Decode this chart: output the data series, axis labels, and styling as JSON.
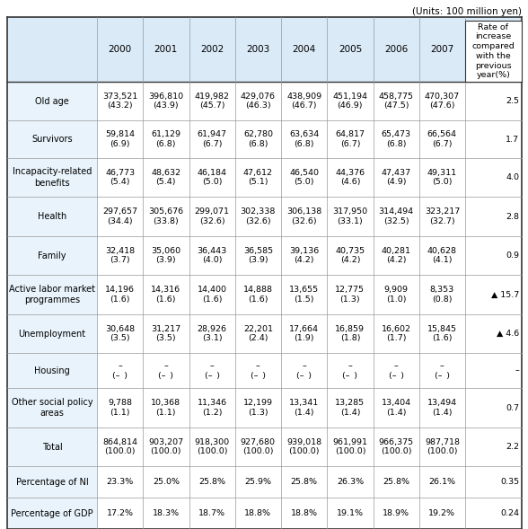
{
  "units_text": "(Units: 100 million yen)",
  "header_years": [
    "2000",
    "2001",
    "2002",
    "2003",
    "2004",
    "2005",
    "2006",
    "2007"
  ],
  "header_last": "Rate of\nincrease\ncompared\nwith the\nprevious\nyear(%)",
  "rows": [
    {
      "label": "Old age",
      "values": [
        "373,521\n(43.2)",
        "396,810\n(43.9)",
        "419,982\n(45.7)",
        "429,076\n(46.3)",
        "438,909\n(46.7)",
        "451,194\n(46.9)",
        "458,775\n(47.5)",
        "470,307\n(47.6)"
      ],
      "last": "2.5"
    },
    {
      "label": "Survivors",
      "values": [
        "59,814\n(6.9)",
        "61,129\n(6.8)",
        "61,947\n(6.7)",
        "62,780\n(6.8)",
        "63,634\n(6.8)",
        "64,817\n(6.7)",
        "65,473\n(6.8)",
        "66,564\n(6.7)"
      ],
      "last": "1.7"
    },
    {
      "label": "Incapacity-related\nbenefits",
      "values": [
        "46,773\n(5.4)",
        "48,632\n(5.4)",
        "46,184\n(5.0)",
        "47,612\n(5.1)",
        "46,540\n(5.0)",
        "44,376\n(4.6)",
        "47,437\n(4.9)",
        "49,311\n(5.0)"
      ],
      "last": "4.0"
    },
    {
      "label": "Health",
      "values": [
        "297,657\n(34.4)",
        "305,676\n(33.8)",
        "299,071\n(32.6)",
        "302,338\n(32.6)",
        "306,138\n(32.6)",
        "317,950\n(33.1)",
        "314,494\n(32.5)",
        "323,217\n(32.7)"
      ],
      "last": "2.8"
    },
    {
      "label": "Family",
      "values": [
        "32,418\n(3.7)",
        "35,060\n(3.9)",
        "36,443\n(4.0)",
        "36,585\n(3.9)",
        "39,136\n(4.2)",
        "40,735\n(4.2)",
        "40,281\n(4.2)",
        "40,628\n(4.1)"
      ],
      "last": "0.9"
    },
    {
      "label": "Active labor market\nprogrammes",
      "values": [
        "14,196\n(1.6)",
        "14,316\n(1.6)",
        "14,400\n(1.6)",
        "14,888\n(1.6)",
        "13,655\n(1.5)",
        "12,775\n(1.3)",
        "9,909\n(1.0)",
        "8,353\n(0.8)"
      ],
      "last": "▲ 15.7"
    },
    {
      "label": "Unemployment",
      "values": [
        "30,648\n(3.5)",
        "31,217\n(3.5)",
        "28,926\n(3.1)",
        "22,201\n(2.4)",
        "17,664\n(1.9)",
        "16,859\n(1.8)",
        "16,602\n(1.7)",
        "15,845\n(1.6)"
      ],
      "last": "▲ 4.6"
    },
    {
      "label": "Housing",
      "values": [
        "–\n(– )",
        "–\n(– )",
        "–\n(– )",
        "–\n(– )",
        "–\n(– )",
        "–\n(– )",
        "–\n(– )",
        "–\n(– )"
      ],
      "last": "–"
    },
    {
      "label": "Other social policy\nareas",
      "values": [
        "9,788\n(1.1)",
        "10,368\n(1.1)",
        "11,346\n(1.2)",
        "12,199\n(1.3)",
        "13,341\n(1.4)",
        "13,285\n(1.4)",
        "13,404\n(1.4)",
        "13,494\n(1.4)"
      ],
      "last": "0.7"
    },
    {
      "label": "Total",
      "values": [
        "864,814\n(100.0)",
        "903,207\n(100.0)",
        "918,300\n(100.0)",
        "927,680\n(100.0)",
        "939,018\n(100.0)",
        "961,991\n(100.0)",
        "966,375\n(100.0)",
        "987,718\n(100.0)"
      ],
      "last": "2.2"
    },
    {
      "label": "Percentage of NI",
      "values": [
        "23.3%",
        "25.0%",
        "25.8%",
        "25.9%",
        "25.8%",
        "26.3%",
        "25.8%",
        "26.1%"
      ],
      "last": "0.35"
    },
    {
      "label": "Percentage of GDP",
      "values": [
        "17.2%",
        "18.3%",
        "18.7%",
        "18.8%",
        "18.8%",
        "19.1%",
        "18.9%",
        "19.2%"
      ],
      "last": "0.24"
    }
  ],
  "header_bg": "#daeaf7",
  "label_bg": "#e8f3fb",
  "data_bg": "#ffffff",
  "strong_border": "#333333",
  "light_border": "#999999",
  "units_fontsize": 7.5,
  "year_fontsize": 7.5,
  "data_fontsize": 6.8,
  "label_fontsize": 7.0,
  "rate_header_fontsize": 6.8
}
